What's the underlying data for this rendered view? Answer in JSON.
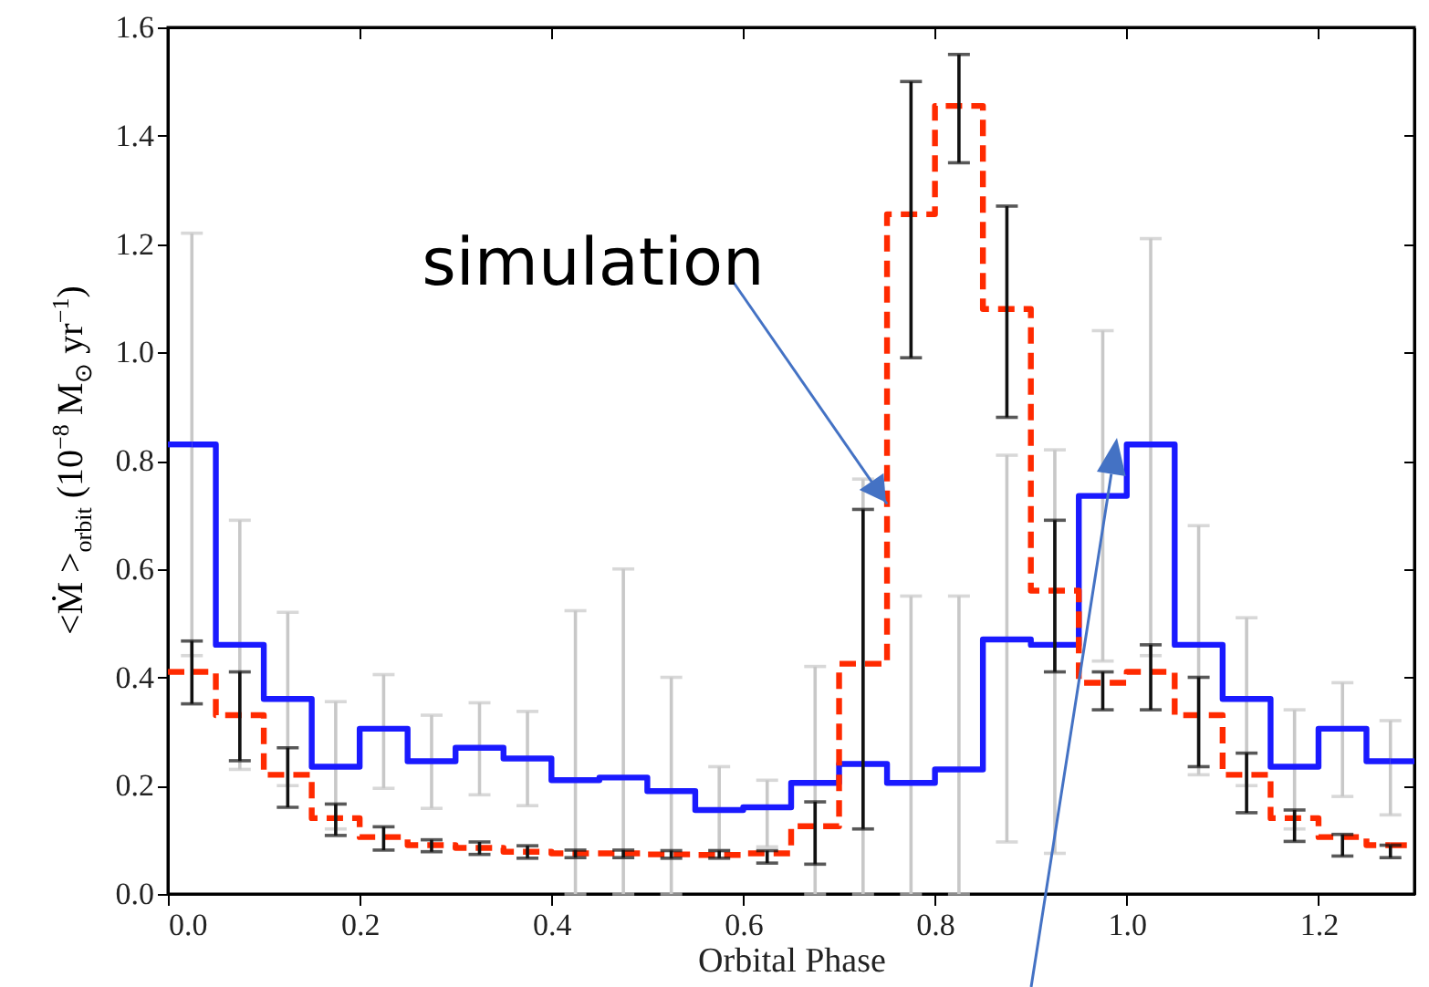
{
  "chart_data": {
    "type": "step",
    "xlabel": "Orbital Phase",
    "ylabel": "<Ṁ >$_{orbit}$  (10$^{−8}$ M$_{⊙}$ yr$^{−1}$)",
    "x": [
      0.025,
      0.075,
      0.125,
      0.175,
      0.225,
      0.275,
      0.325,
      0.375,
      0.425,
      0.475,
      0.525,
      0.575,
      0.625,
      0.675,
      0.725,
      0.775,
      0.825,
      0.875,
      0.925,
      0.975,
      1.025,
      1.075,
      1.125,
      1.175,
      1.225,
      1.275
    ],
    "series": [
      {
        "color": "#1a1aff",
        "line_style": "solid",
        "values": [
          0.83,
          0.46,
          0.36,
          0.235,
          0.305,
          0.245,
          0.27,
          0.25,
          0.21,
          0.215,
          0.19,
          0.155,
          0.16,
          0.205,
          0.24,
          0.205,
          0.23,
          0.47,
          0.46,
          0.735,
          0.83,
          0.46,
          0.36,
          0.235,
          0.305,
          0.245
        ],
        "errors": [
          [
            0.44,
            1.22
          ],
          [
            0.23,
            0.69
          ],
          [
            0.2,
            0.52
          ],
          [
            0.12,
            0.355
          ],
          [
            0.195,
            0.405
          ],
          [
            0.158,
            0.33
          ],
          [
            0.183,
            0.353
          ],
          [
            0.163,
            0.337
          ],
          [
            0,
            0.523
          ],
          [
            0,
            0.6
          ],
          [
            0,
            0.4
          ],
          [
            0.08,
            0.235
          ],
          [
            0.087,
            0.21
          ],
          [
            0,
            0.42
          ],
          [
            0,
            0.766
          ],
          [
            0,
            0.55
          ],
          [
            0,
            0.55
          ],
          [
            0.096,
            0.81
          ],
          [
            0.075,
            0.82
          ],
          [
            0.43,
            1.04
          ],
          [
            0.44,
            1.21
          ],
          [
            0.22,
            0.68
          ],
          [
            0.2,
            0.51
          ],
          [
            0.12,
            0.34
          ],
          [
            0.18,
            0.39
          ],
          [
            0.146,
            0.32
          ]
        ]
      },
      {
        "color": "#ff2a00",
        "line_style": "dashed",
        "values": [
          0.41,
          0.33,
          0.22,
          0.14,
          0.105,
          0.09,
          0.085,
          0.078,
          0.075,
          0.075,
          0.073,
          0.072,
          0.075,
          0.125,
          0.425,
          1.255,
          1.455,
          1.08,
          0.56,
          0.39,
          0.41,
          0.33,
          0.22,
          0.14,
          0.105,
          0.09
        ],
        "errors": [
          [
            0.351,
            0.467
          ],
          [
            0.246,
            0.41
          ],
          [
            0.16,
            0.27
          ],
          [
            0.108,
            0.166
          ],
          [
            0.081,
            0.124
          ],
          [
            0.078,
            0.1
          ],
          [
            0.073,
            0.096
          ],
          [
            0.066,
            0.089
          ],
          [
            0.067,
            0.081
          ],
          [
            0.067,
            0.081
          ],
          [
            0.066,
            0.08
          ],
          [
            0.066,
            0.08
          ],
          [
            0.057,
            0.08
          ],
          [
            0.055,
            0.17
          ],
          [
            0.12,
            0.71
          ],
          [
            0.99,
            1.5
          ],
          [
            1.35,
            1.55
          ],
          [
            0.88,
            1.27
          ],
          [
            0.41,
            0.69
          ],
          [
            0.34,
            0.41
          ],
          [
            0.34,
            0.46
          ],
          [
            0.235,
            0.4
          ],
          [
            0.15,
            0.26
          ],
          [
            0.097,
            0.155
          ],
          [
            0.07,
            0.11
          ],
          [
            0.067,
            0.09
          ]
        ]
      }
    ],
    "xlim": [
      0,
      1.3
    ],
    "ylim": [
      0,
      1.6
    ],
    "xticks": [
      {
        "value": 0,
        "label": "0.0"
      },
      {
        "value": 0.2,
        "label": "0.2"
      },
      {
        "value": 0.4,
        "label": "0.4"
      },
      {
        "value": 0.6,
        "label": "0.6"
      },
      {
        "value": 0.8,
        "label": "0.8"
      },
      {
        "value": 1,
        "label": "1.0"
      },
      {
        "value": 1.2,
        "label": "1.2"
      }
    ],
    "yticks": [
      {
        "value": 0,
        "label": "0.0"
      },
      {
        "value": 0.2,
        "label": "0.2"
      },
      {
        "value": 0.4,
        "label": "0.4"
      },
      {
        "value": 0.6,
        "label": "0.6"
      },
      {
        "value": 0.8,
        "label": "0.8"
      },
      {
        "value": 1,
        "label": "1.0"
      },
      {
        "value": 1.2,
        "label": "1.2"
      },
      {
        "value": 1.4,
        "label": "1.4"
      },
      {
        "value": 1.6,
        "label": "1.6"
      }
    ],
    "annotations": [
      {
        "text": "simulation",
        "x": 0.75,
        "y": 0.72
      }
    ]
  }
}
